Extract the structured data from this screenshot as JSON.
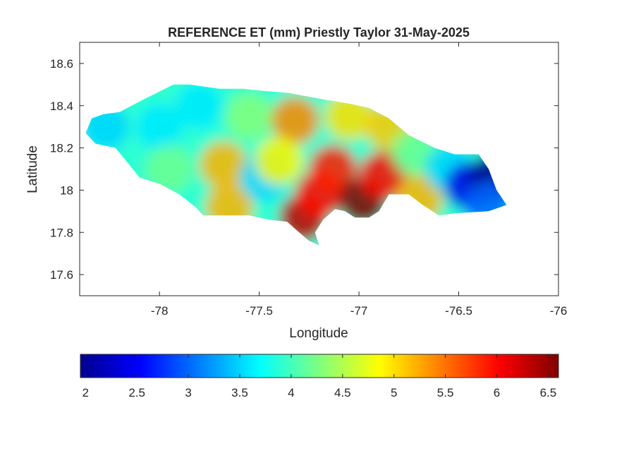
{
  "chart_data": {
    "type": "heatmap",
    "title": "REFERENCE ET (mm) Priestly Taylor 31-May-2025",
    "xlabel": "Longitude",
    "ylabel": "Latitude",
    "xlim": [
      -78.4,
      -76
    ],
    "ylim": [
      17.5,
      18.7
    ],
    "x_ticks": [
      -78,
      -77.5,
      -77,
      -76.5,
      -76
    ],
    "x_tick_labels": [
      "-78",
      "-77.5",
      "-77",
      "-76.5",
      "-76"
    ],
    "y_ticks": [
      17.6,
      17.8,
      18,
      18.2,
      18.4,
      18.6
    ],
    "y_tick_labels": [
      "17.6",
      "17.8",
      "18",
      "18.2",
      "18.4",
      "18.6"
    ],
    "grid": false,
    "colormap": "jet",
    "colorbar": {
      "orientation": "horizontal",
      "location": "bottom",
      "range": [
        1.95,
        6.6
      ],
      "ticks": [
        2,
        2.5,
        3,
        3.5,
        4,
        4.5,
        5,
        5.5,
        6,
        6.5
      ],
      "tick_labels": [
        "2",
        "2.5",
        "3",
        "3.5",
        "4",
        "4.5",
        "5",
        "5.5",
        "6",
        "6.5"
      ]
    },
    "base_value": 3.9,
    "field_regions": [
      {
        "lon": -78.27,
        "lat": 18.3,
        "value": 3.5
      },
      {
        "lon": -78.0,
        "lat": 18.3,
        "value": 3.6
      },
      {
        "lon": -77.95,
        "lat": 18.1,
        "value": 4.2
      },
      {
        "lon": -77.8,
        "lat": 18.4,
        "value": 3.6
      },
      {
        "lon": -77.55,
        "lat": 18.35,
        "value": 4.3
      },
      {
        "lon": -77.65,
        "lat": 17.92,
        "value": 5.2
      },
      {
        "lon": -77.68,
        "lat": 18.12,
        "value": 5.2
      },
      {
        "lon": -77.48,
        "lat": 18.06,
        "value": 3.5
      },
      {
        "lon": -77.32,
        "lat": 18.33,
        "value": 5.4
      },
      {
        "lon": -77.4,
        "lat": 18.14,
        "value": 4.9
      },
      {
        "lon": -77.28,
        "lat": 17.87,
        "value": 6.3
      },
      {
        "lon": -77.2,
        "lat": 17.98,
        "value": 6.0
      },
      {
        "lon": -77.13,
        "lat": 18.1,
        "value": 5.9
      },
      {
        "lon": -77.05,
        "lat": 18.35,
        "value": 5.0
      },
      {
        "lon": -76.98,
        "lat": 17.95,
        "value": 6.6
      },
      {
        "lon": -76.88,
        "lat": 18.07,
        "value": 6.0
      },
      {
        "lon": -76.85,
        "lat": 18.3,
        "value": 5.1
      },
      {
        "lon": -76.72,
        "lat": 18.18,
        "value": 4.2
      },
      {
        "lon": -76.7,
        "lat": 17.96,
        "value": 5.2
      },
      {
        "lon": -76.55,
        "lat": 18.1,
        "value": 3.5
      },
      {
        "lon": -76.45,
        "lat": 18.02,
        "value": 2.4
      },
      {
        "lon": -76.33,
        "lat": 18.06,
        "value": 2.0
      },
      {
        "lon": -76.35,
        "lat": 17.93,
        "value": 3.0
      }
    ]
  }
}
